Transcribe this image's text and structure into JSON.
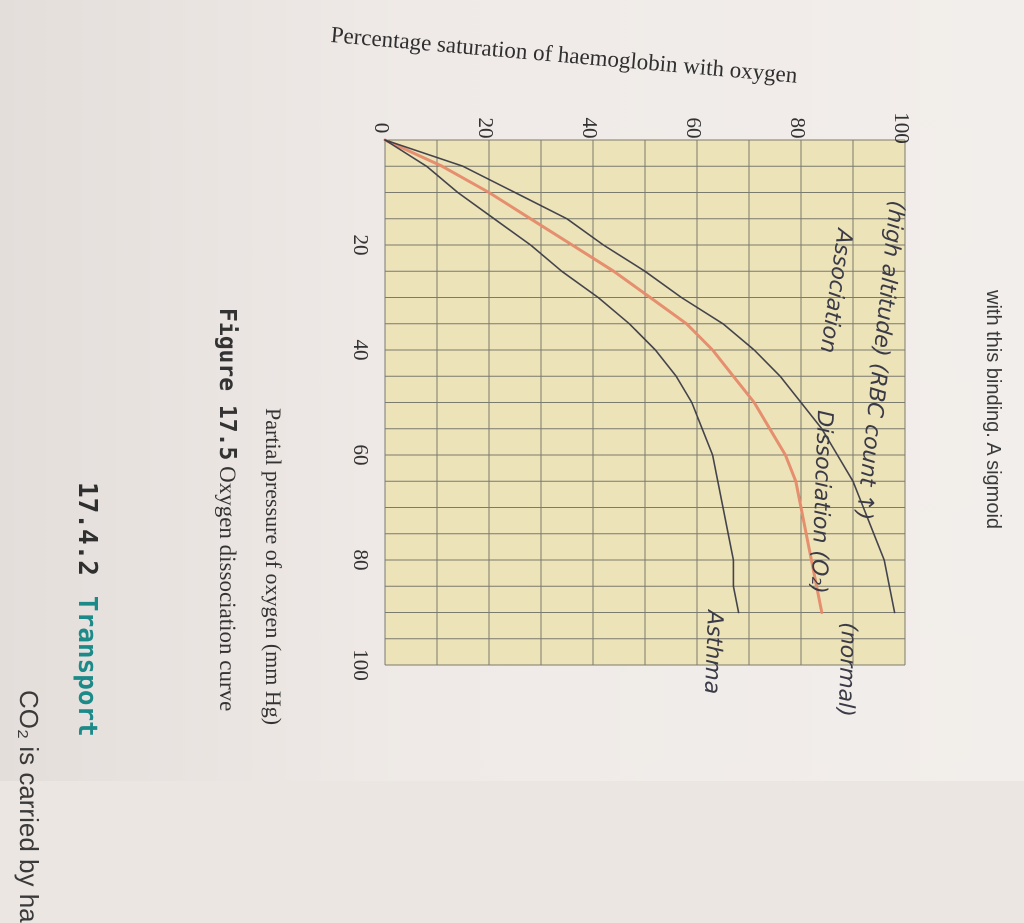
{
  "page": {
    "title": "Percentage saturation of haemoglobin with oxygen",
    "top_right_text": "with this binding. A sigmoid",
    "figure_label": "Figure 17.5",
    "figure_caption": "Oxygen dissociation curve",
    "section_number": "17.4.2",
    "section_title": "Transport",
    "bottom_text": "CO₂ is carried by ha"
  },
  "annotations": {
    "high_altitude": "(high altitude) (RBC count ↑)",
    "association": "Association",
    "dissociation": "Dissociation (O₂)",
    "asthma": "Asthma",
    "normal": "(normal)"
  },
  "colors": {
    "plot_bg": "#ede3b8",
    "grid": "#7a7a6e",
    "normal_curve": "#e58a6a",
    "pencil_curve": "#3b3b46"
  },
  "chart_data": {
    "type": "line",
    "title": "Percentage saturation of haemoglobin with oxygen",
    "xlabel": "Partial pressure of oxygen (mm Hg)",
    "ylabel": "",
    "xlim": [
      0,
      100
    ],
    "ylim": [
      0,
      100
    ],
    "x_ticks": [
      0,
      20,
      40,
      60,
      80,
      100
    ],
    "y_ticks": [
      0,
      20,
      40,
      60,
      80,
      100
    ],
    "grid": true,
    "series": [
      {
        "name": "(normal)",
        "color": "#e58a6a",
        "x": [
          0,
          5,
          10,
          15,
          20,
          25,
          30,
          35,
          40,
          45,
          50,
          55,
          60,
          65,
          70,
          75,
          80,
          85,
          90
        ],
        "y": [
          0,
          11,
          20,
          28,
          36,
          44,
          51,
          58,
          63,
          67,
          71,
          74,
          77,
          79,
          80,
          81,
          82,
          83,
          84
        ]
      },
      {
        "name": "Asthma",
        "color": "#3b3b46",
        "x": [
          0,
          5,
          10,
          15,
          20,
          25,
          30,
          35,
          40,
          45,
          50,
          55,
          60,
          65,
          70,
          75,
          80,
          85,
          90
        ],
        "y": [
          0,
          8,
          14,
          21,
          28,
          34,
          41,
          47,
          52,
          56,
          59,
          61,
          63,
          64,
          65,
          66,
          67,
          67,
          68
        ]
      },
      {
        "name": "(high altitude)",
        "color": "#3b3b46",
        "x": [
          0,
          5,
          10,
          15,
          20,
          25,
          30,
          35,
          40,
          45,
          50,
          55,
          60,
          65,
          70,
          75,
          80,
          85,
          90
        ],
        "y": [
          0,
          15,
          25,
          35,
          42,
          50,
          57,
          65,
          71,
          76,
          80,
          84,
          87,
          90,
          92,
          94,
          96,
          97,
          98
        ]
      }
    ]
  }
}
